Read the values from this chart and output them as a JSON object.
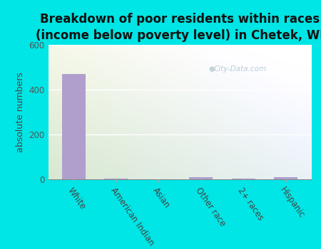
{
  "title": "Breakdown of poor residents within races\n(income below poverty level) in Chetek, WI",
  "categories": [
    "White",
    "American Indian",
    "Asian",
    "Other race",
    "2+ races",
    "Hispanic"
  ],
  "values": [
    470,
    4,
    0,
    10,
    2,
    11
  ],
  "bar_color": "#b09fcc",
  "ylabel": "absolute numbers",
  "ylim": [
    0,
    600
  ],
  "yticks": [
    0,
    200,
    400,
    600
  ],
  "background_color": "#00e5e5",
  "plot_bg_topleft": "#d8e8d0",
  "plot_bg_topright": "#eaf2f8",
  "plot_bg_bottom": "#f0f5e8",
  "title_fontsize": 12,
  "tick_fontsize": 8.5,
  "label_fontsize": 9,
  "watermark": "City-Data.com"
}
